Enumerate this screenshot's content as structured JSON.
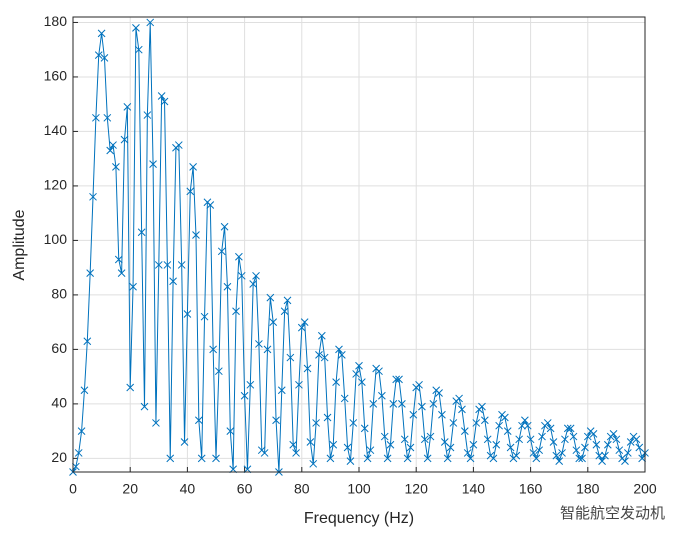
{
  "chart_data": {
    "type": "line",
    "xlabel": "Frequency (Hz)",
    "ylabel": "Amplitude",
    "annotation": "智能航空发动机",
    "xlim": [
      0,
      200
    ],
    "ylim": [
      15,
      182
    ],
    "xticks": [
      0,
      20,
      40,
      60,
      80,
      100,
      120,
      140,
      160,
      180,
      200
    ],
    "yticks": [
      20,
      40,
      60,
      80,
      100,
      120,
      140,
      160,
      180
    ],
    "grid": true,
    "series": [
      {
        "color": "#0072bd",
        "x": [
          0,
          1,
          2,
          3,
          4,
          5,
          6,
          7,
          8,
          9,
          10,
          11,
          12,
          13,
          14,
          15,
          16,
          17,
          18,
          19,
          20,
          21,
          22,
          23,
          24,
          25,
          26,
          27,
          28,
          29,
          30,
          31,
          32,
          33,
          34,
          35,
          36,
          37,
          38,
          39,
          40,
          41,
          42,
          43,
          44,
          45,
          46,
          47,
          48,
          49,
          50,
          51,
          52,
          53,
          54,
          55,
          56,
          57,
          58,
          59,
          60,
          61,
          62,
          63,
          64,
          65,
          66,
          67,
          68,
          69,
          70,
          71,
          72,
          73,
          74,
          75,
          76,
          77,
          78,
          79,
          80,
          81,
          82,
          83,
          84,
          85,
          86,
          87,
          88,
          89,
          90,
          91,
          92,
          93,
          94,
          95,
          96,
          97,
          98,
          99,
          100,
          101,
          102,
          103,
          104,
          105,
          106,
          107,
          108,
          109,
          110,
          111,
          112,
          113,
          114,
          115,
          116,
          117,
          118,
          119,
          120,
          121,
          122,
          123,
          124,
          125,
          126,
          127,
          128,
          129,
          130,
          131,
          132,
          133,
          134,
          135,
          136,
          137,
          138,
          139,
          140,
          141,
          142,
          143,
          144,
          145,
          146,
          147,
          148,
          149,
          150,
          151,
          152,
          153,
          154,
          155,
          156,
          157,
          158,
          159,
          160,
          161,
          162,
          163,
          164,
          165,
          166,
          167,
          168,
          169,
          170,
          171,
          172,
          173,
          174,
          175,
          176,
          177,
          178,
          179,
          180,
          181,
          182,
          183,
          184,
          185,
          186,
          187,
          188,
          189,
          190,
          191,
          192,
          193,
          194,
          195,
          196,
          197,
          198,
          199,
          200
        ],
        "values": [
          15,
          17,
          22,
          30,
          45,
          63,
          88,
          116,
          145,
          168,
          176,
          167,
          145,
          133,
          135,
          127,
          93,
          88,
          137,
          149,
          46,
          83,
          178,
          170,
          103,
          39,
          146,
          180,
          128,
          33,
          91,
          153,
          151,
          91,
          20,
          85,
          134,
          135,
          91,
          26,
          73,
          118,
          127,
          102,
          34,
          20,
          72,
          114,
          113,
          60,
          20,
          52,
          96,
          105,
          83,
          30,
          16,
          74,
          94,
          87,
          43,
          16,
          47,
          84,
          87,
          62,
          23,
          22,
          60,
          79,
          70,
          34,
          15,
          45,
          74,
          78,
          57,
          25,
          22,
          47,
          68,
          70,
          53,
          26,
          18,
          33,
          58,
          65,
          57,
          35,
          20,
          25,
          48,
          60,
          58,
          42,
          24,
          19,
          33,
          51,
          54,
          48,
          31,
          20,
          23,
          40,
          53,
          52,
          43,
          28,
          20,
          25,
          40,
          49,
          49,
          40,
          27,
          20,
          24,
          36,
          46,
          47,
          39,
          27,
          20,
          28,
          40,
          45,
          44,
          36,
          26,
          20,
          24,
          33,
          41,
          42,
          38,
          30,
          22,
          20,
          25,
          33,
          38,
          39,
          34,
          27,
          21,
          20,
          25,
          32,
          36,
          35,
          30,
          24,
          20,
          21,
          27,
          32,
          34,
          32,
          27,
          22,
          20,
          23,
          28,
          32,
          33,
          31,
          26,
          21,
          19,
          22,
          27,
          31,
          31,
          28,
          23,
          20,
          20,
          24,
          28,
          30,
          29,
          25,
          21,
          19,
          21,
          25,
          28,
          29,
          27,
          23,
          20,
          19,
          22,
          26,
          28,
          27,
          24,
          20,
          22
        ]
      }
    ]
  }
}
